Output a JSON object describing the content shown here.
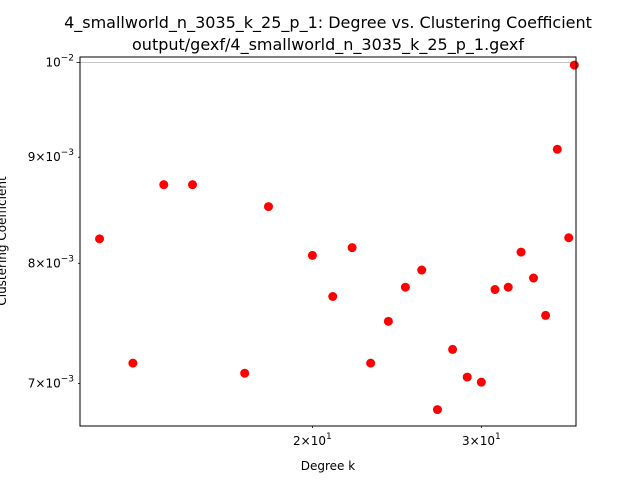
{
  "chart_data": {
    "type": "scatter",
    "title": "4_smallworld_n_3035_k_25_p_1: Degree vs. Clustering Coefficient",
    "subtitle": "output/gexf/4_smallworld_n_3035_k_25_p_1.gexf",
    "xlabel": "Degree k",
    "ylabel": "Clustering Coefficient",
    "xscale": "log",
    "yscale": "log",
    "xlim": [
      11.45,
      37.65
    ],
    "ylim": [
      0.006677,
      0.01006
    ],
    "grid": "horizontal major gridline at 10^-2",
    "marker_color": "#ff0000",
    "x_ticks": [
      {
        "value": 20,
        "base": "2",
        "sep": "×",
        "power": "10",
        "exp": "1"
      },
      {
        "value": 30,
        "base": "3",
        "sep": "×",
        "power": "10",
        "exp": "1"
      }
    ],
    "y_ticks": [
      {
        "value": 0.01,
        "base": "",
        "sep": "",
        "power": "10",
        "exp": "−2"
      },
      {
        "value": 0.009,
        "base": "9",
        "sep": "×",
        "power": "10",
        "exp": "−3"
      },
      {
        "value": 0.008,
        "base": "8",
        "sep": "×",
        "power": "10",
        "exp": "−3"
      },
      {
        "value": 0.007,
        "base": "7",
        "sep": "×",
        "power": "10",
        "exp": "−3"
      }
    ],
    "points": [
      {
        "x": 12,
        "y": 0.00822
      },
      {
        "x": 13,
        "y": 0.00716
      },
      {
        "x": 14,
        "y": 0.00873
      },
      {
        "x": 15,
        "y": 0.00873
      },
      {
        "x": 17,
        "y": 0.00708
      },
      {
        "x": 18,
        "y": 0.00852
      },
      {
        "x": 20,
        "y": 0.00807
      },
      {
        "x": 21,
        "y": 0.00771
      },
      {
        "x": 22,
        "y": 0.00814
      },
      {
        "x": 23,
        "y": 0.00716
      },
      {
        "x": 24,
        "y": 0.0075
      },
      {
        "x": 25,
        "y": 0.00779
      },
      {
        "x": 26,
        "y": 0.00794
      },
      {
        "x": 27,
        "y": 0.0068
      },
      {
        "x": 28,
        "y": 0.00727
      },
      {
        "x": 29,
        "y": 0.00705
      },
      {
        "x": 30,
        "y": 0.00701
      },
      {
        "x": 31,
        "y": 0.00777
      },
      {
        "x": 32,
        "y": 0.00779
      },
      {
        "x": 33,
        "y": 0.0081
      },
      {
        "x": 34,
        "y": 0.00787
      },
      {
        "x": 35,
        "y": 0.00755
      },
      {
        "x": 36,
        "y": 0.00908
      },
      {
        "x": 37,
        "y": 0.00823
      },
      {
        "x": 37.5,
        "y": 0.00997
      }
    ]
  }
}
